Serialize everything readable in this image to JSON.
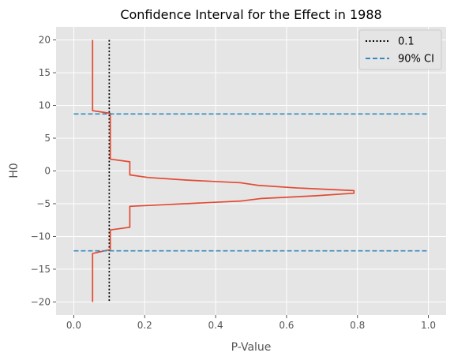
{
  "chart_data": {
    "type": "line",
    "title": "Confidence Interval for the Effect in 1988",
    "xlabel": "P-Value",
    "ylabel": "H0",
    "xlim": [
      -0.05,
      1.05
    ],
    "ylim": [
      -22,
      22
    ],
    "xticks": [
      0.0,
      0.2,
      0.4,
      0.6,
      0.8,
      1.0
    ],
    "xtick_labels": [
      "0.0",
      "0.2",
      "0.4",
      "0.6",
      "0.8",
      "1.0"
    ],
    "yticks": [
      -20,
      -15,
      -10,
      -5,
      0,
      5,
      10,
      15,
      20
    ],
    "ytick_labels": [
      "−20",
      "−15",
      "−10",
      "−5",
      "0",
      "5",
      "10",
      "15",
      "20"
    ],
    "grid": true,
    "legend_position": "top-right",
    "style": {
      "background": "#e5e5e5",
      "grid_color": "#ffffff",
      "text_color": "#555555",
      "title_color": "#000000"
    },
    "series": [
      {
        "color": "#e24a33",
        "style": "solid",
        "points": [
          [
            0.053,
            20
          ],
          [
            0.053,
            9.2
          ],
          [
            0.103,
            8.8
          ],
          [
            0.103,
            1.8
          ],
          [
            0.158,
            1.4
          ],
          [
            0.158,
            -0.6
          ],
          [
            0.21,
            -1.0
          ],
          [
            0.32,
            -1.4
          ],
          [
            0.47,
            -1.8
          ],
          [
            0.52,
            -2.2
          ],
          [
            0.63,
            -2.6
          ],
          [
            0.79,
            -3.0
          ],
          [
            0.79,
            -3.4
          ],
          [
            0.68,
            -3.8
          ],
          [
            0.53,
            -4.2
          ],
          [
            0.47,
            -4.6
          ],
          [
            0.158,
            -5.4
          ],
          [
            0.158,
            -8.6
          ],
          [
            0.103,
            -9.0
          ],
          [
            0.103,
            -12.0
          ],
          [
            0.053,
            -12.6
          ],
          [
            0.053,
            -20
          ]
        ]
      },
      {
        "name": "0.1",
        "color": "#000000",
        "style": "dotted",
        "points": [
          [
            0.1,
            20
          ],
          [
            0.1,
            -20
          ]
        ]
      },
      {
        "name": "90% CI",
        "color": "#348abd",
        "style": "dashed",
        "points": [
          [
            0.0,
            8.7
          ],
          [
            1.0,
            8.7
          ]
        ]
      },
      {
        "color": "#348abd",
        "style": "dashed",
        "points": [
          [
            0.0,
            -12.2
          ],
          [
            1.0,
            -12.2
          ]
        ]
      }
    ]
  }
}
